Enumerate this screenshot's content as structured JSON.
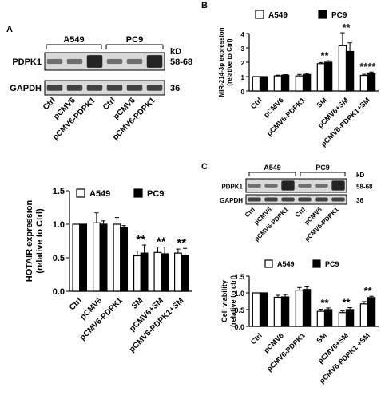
{
  "panel_letters": [
    "A",
    "B",
    "C"
  ],
  "blots": {
    "A": {
      "groups": [
        "A549",
        "PC9"
      ],
      "bands": [
        {
          "label": "PDPK1",
          "kd": "58-68"
        },
        {
          "label": "GAPDH",
          "kd": "36"
        }
      ],
      "kd_header": "kD",
      "lanes": [
        "Ctrl",
        "pCMV6",
        "pCMV6-PDPK1",
        "Ctrl",
        "pCMV6",
        "pCMV6-PDPK1"
      ]
    },
    "C": {
      "groups": [
        "A549",
        "PC9"
      ],
      "bands": [
        {
          "label": "PDPK1",
          "kd": "58-68"
        },
        {
          "label": "GAPDH",
          "kd": "36"
        }
      ],
      "kd_header": "kD",
      "lanes": [
        "Ctrl",
        "pCMV6",
        "pCMV6-PDPK1",
        "Ctrl",
        "pCMV6",
        "pCMV6-PDPK1"
      ]
    }
  },
  "chart_data": [
    {
      "id": "A-HOTAIR",
      "type": "bar",
      "ylabel": [
        "HOTAIR expression",
        "(relative to Ctrl)"
      ],
      "ylim": [
        0,
        1.5
      ],
      "yticks": [
        "0.0",
        "0.5",
        "1.0",
        "1.5"
      ],
      "categories": [
        "Ctrl",
        "pCMV6",
        "pCMV6-PDPK1",
        "SM",
        "pCMV6+SM",
        "pCMV6-PDPK1+SM"
      ],
      "series": [
        {
          "name": "A549",
          "color": "#ffffff",
          "values": [
            1.0,
            1.02,
            1.0,
            0.53,
            0.58,
            0.57
          ],
          "errors": [
            0.0,
            0.15,
            0.1,
            0.07,
            0.08,
            0.06
          ]
        },
        {
          "name": "PC9",
          "color": "#000000",
          "values": [
            1.0,
            1.0,
            0.95,
            0.57,
            0.56,
            0.54
          ],
          "errors": [
            0.0,
            0.05,
            0.03,
            0.12,
            0.1,
            0.1
          ]
        }
      ],
      "annotations": [
        "",
        "",
        "",
        "**",
        "**",
        "**"
      ],
      "legend": "top"
    },
    {
      "id": "B-miR214",
      "type": "bar",
      "ylabel": [
        "MIR-214-3p expression",
        "(relative to Ctrl)"
      ],
      "ylim": [
        0,
        4
      ],
      "yticks": [
        "0",
        "1",
        "2",
        "3",
        "4"
      ],
      "categories": [
        "Ctrl",
        "pCMV6",
        "pCMV6-PDPK1",
        "SM",
        "pCMV6+SM",
        "pCMV6-PDPK1+SM"
      ],
      "series": [
        {
          "name": "A549",
          "color": "#ffffff",
          "values": [
            1.0,
            1.05,
            1.05,
            1.9,
            3.15,
            1.08
          ],
          "errors": [
            0.0,
            0.05,
            0.1,
            0.08,
            0.9,
            0.08
          ]
        },
        {
          "name": "PC9",
          "color": "#000000",
          "values": [
            1.0,
            1.1,
            1.15,
            2.0,
            2.75,
            1.25
          ],
          "errors": [
            0.0,
            0.04,
            0.08,
            0.1,
            0.6,
            0.07
          ]
        }
      ],
      "annotations": [
        "",
        "",
        "",
        "**",
        "**",
        "****"
      ],
      "legend": "top"
    },
    {
      "id": "C-viability",
      "type": "bar",
      "ylabel": [
        "Cell viability",
        "(relative to ctrl)"
      ],
      "ylim": [
        0,
        1.5
      ],
      "yticks": [
        "0.0",
        "0.5",
        "1.0",
        "1.5"
      ],
      "categories": [
        "Ctrl",
        "pCMV6",
        "pCMV6-PDPK1",
        "SM",
        "pCMV6+SM",
        "pCMV6-PDPK1 +SM"
      ],
      "series": [
        {
          "name": "A549",
          "color": "#ffffff",
          "values": [
            1.0,
            0.87,
            1.08,
            0.45,
            0.41,
            0.67
          ],
          "errors": [
            0.0,
            0.06,
            0.08,
            0.06,
            0.05,
            0.07
          ]
        },
        {
          "name": "PC9",
          "color": "#000000",
          "values": [
            1.0,
            0.88,
            1.1,
            0.5,
            0.5,
            0.86
          ],
          "errors": [
            0.0,
            0.07,
            0.08,
            0.05,
            0.06,
            0.04
          ]
        }
      ],
      "annotations": [
        "",
        "",
        "",
        "**",
        "**",
        "**"
      ],
      "legend": "top"
    }
  ]
}
